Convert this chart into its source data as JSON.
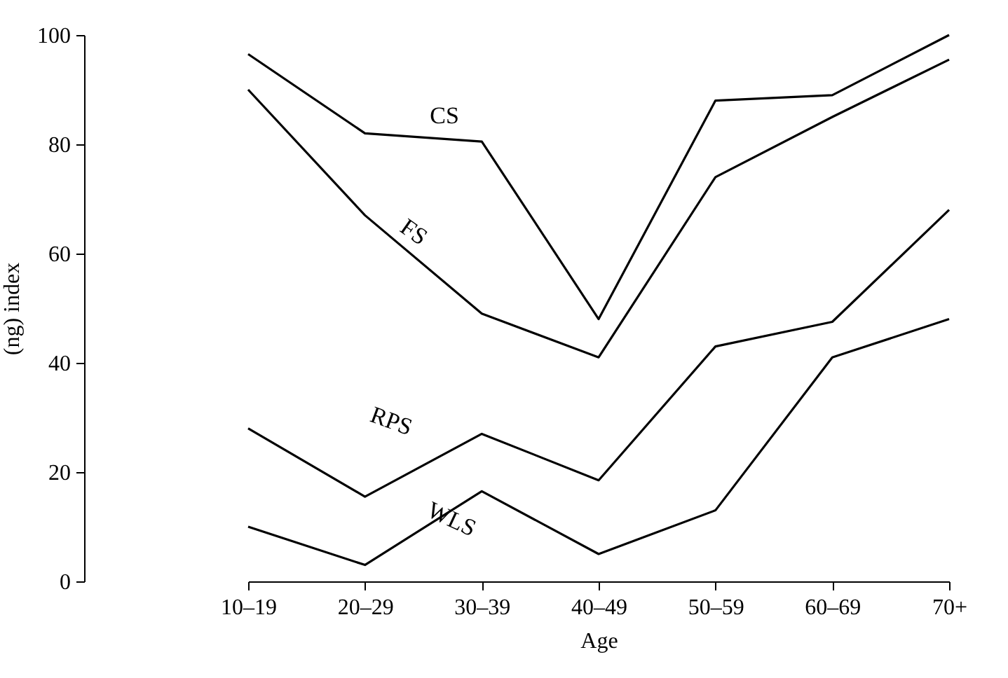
{
  "chart_data": {
    "type": "line",
    "xlabel": "Age",
    "ylabel": "(ng) index",
    "categories": [
      "10–19",
      "20–29",
      "30–39",
      "40–49",
      "50–59",
      "60–69",
      "70+"
    ],
    "ylim": [
      0,
      100
    ],
    "yticks": [
      0,
      20,
      40,
      60,
      80,
      100
    ],
    "grid": false,
    "legend": false,
    "marker": "none",
    "line_style": "solid",
    "series": [
      {
        "name": "CS",
        "color": "#000000",
        "values": [
          96.5,
          82,
          80.5,
          48,
          88,
          89,
          100
        ]
      },
      {
        "name": "FS",
        "color": "#000000",
        "values": [
          90,
          67,
          49,
          41,
          74,
          85,
          95.5
        ]
      },
      {
        "name": "RPS",
        "color": "#000000",
        "values": [
          28,
          15.5,
          27,
          18.5,
          43,
          47.5,
          68
        ]
      },
      {
        "name": "WLS",
        "color": "#000000",
        "values": [
          10,
          3,
          16.5,
          5,
          13,
          41,
          48
        ]
      }
    ]
  }
}
